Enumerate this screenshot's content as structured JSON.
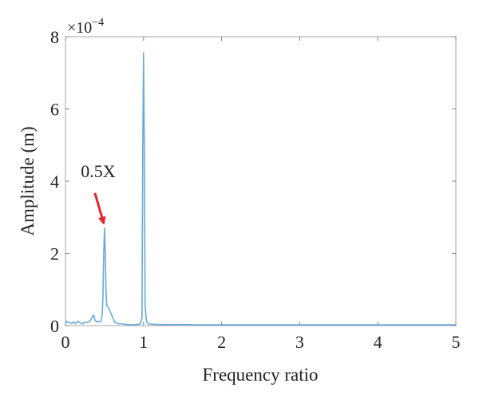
{
  "chart_data": {
    "type": "line",
    "xlabel": "Frequency ratio",
    "ylabel": "Amplitude (m)",
    "y_scale_label": "×10",
    "y_scale_exponent": "−4",
    "xlim": [
      0,
      5
    ],
    "ylim": [
      0,
      8
    ],
    "xticks": [
      0,
      1,
      2,
      3,
      4,
      5
    ],
    "xtick_labels": [
      "0",
      "1",
      "2",
      "3",
      "4",
      "5"
    ],
    "yticks": [
      0,
      2,
      4,
      6,
      8
    ],
    "ytick_labels": [
      "0",
      "2",
      "4",
      "6",
      "8"
    ],
    "grid": false,
    "legend": "none",
    "series": [
      {
        "color": "#6aaad8",
        "x": [
          0.0,
          0.02,
          0.05,
          0.08,
          0.1,
          0.13,
          0.16,
          0.19,
          0.22,
          0.25,
          0.28,
          0.31,
          0.34,
          0.36,
          0.38,
          0.4,
          0.42,
          0.44,
          0.46,
          0.47,
          0.48,
          0.49,
          0.5,
          0.51,
          0.52,
          0.53,
          0.55,
          0.57,
          0.59,
          0.61,
          0.63,
          0.65,
          0.68,
          0.72,
          0.78,
          0.85,
          0.92,
          0.96,
          0.98,
          0.99,
          1.0,
          1.01,
          1.02,
          1.04,
          1.06,
          1.1,
          1.2,
          1.35,
          1.5,
          1.7,
          2.0,
          2.5,
          3.0,
          3.5,
          4.0,
          4.5,
          5.0
        ],
        "y": [
          0.05,
          0.12,
          0.08,
          0.06,
          0.1,
          0.05,
          0.12,
          0.07,
          0.05,
          0.1,
          0.08,
          0.12,
          0.22,
          0.3,
          0.15,
          0.1,
          0.12,
          0.1,
          0.15,
          0.3,
          0.8,
          2.0,
          2.7,
          2.0,
          0.9,
          0.55,
          0.5,
          0.4,
          0.3,
          0.2,
          0.1,
          0.08,
          0.05,
          0.05,
          0.03,
          0.02,
          0.03,
          0.05,
          0.2,
          4.9,
          7.55,
          4.9,
          0.5,
          0.1,
          0.05,
          0.04,
          0.03,
          0.03,
          0.03,
          0.02,
          0.02,
          0.02,
          0.02,
          0.02,
          0.02,
          0.02,
          0.02
        ]
      }
    ],
    "annotations": [
      {
        "text": "0.5X",
        "x": 0.5,
        "y": 2.7,
        "arrow_color": "#e8242c"
      }
    ]
  }
}
